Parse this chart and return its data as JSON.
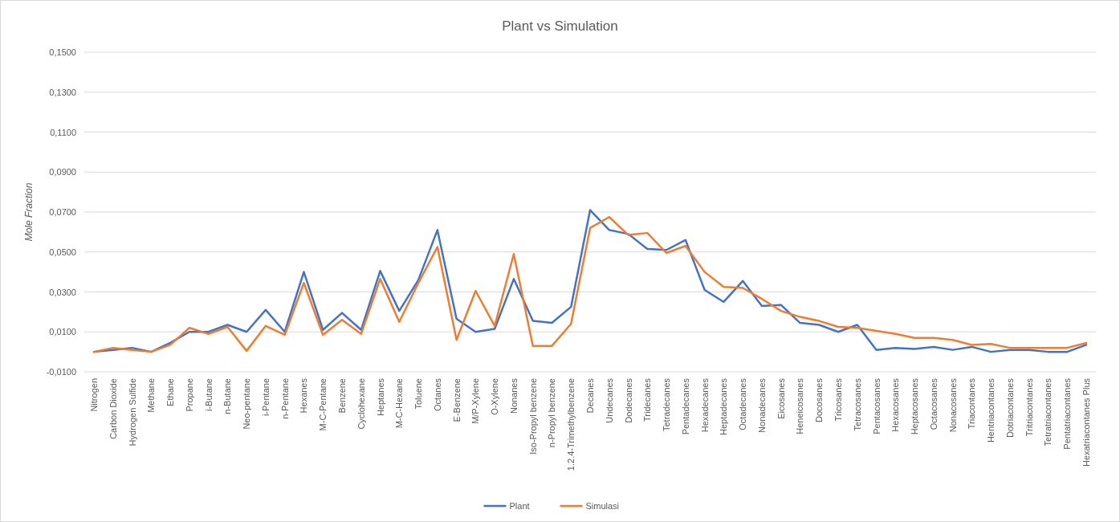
{
  "chart_data": {
    "type": "line",
    "title": "Plant vs Simulation",
    "ylabel": "Mole Fraction",
    "categories": [
      "Nitrogen",
      "Carbon Dioxide",
      "Hydrogen Sulfide",
      "Methane",
      "Ethane",
      "Propane",
      "i-Butane",
      "n-Butane",
      "Neo-pentane",
      "i-Pentane",
      "n-Pentane",
      "Hexanes",
      "M-C-Pentane",
      "Benzene",
      "Cyclohexane",
      "Heptanes",
      "M-C-Hexane",
      "Toluene",
      "Octanes",
      "E-Benzene",
      "M/P-Xylene",
      "O-Xylene",
      "Nonanes",
      "Iso-Propyl benzene",
      "n-Propyl benzene",
      "1.2.4-Trimethylbenzene",
      "Decanes",
      "Undecanes",
      "Dodecanes",
      "Tridecanes",
      "Tetradecanes",
      "Pentadecanes",
      "Hexadecanes",
      "Heptadecanes",
      "Octadecanes",
      "Nonadecanes",
      "Eicosanes",
      "Heneicosanes",
      "Docosanes",
      "Tricosanes",
      "Tetracosanes",
      "Pentacosanes",
      "Hexacosanes",
      "Heptacosanes",
      "Octacosanes",
      "Nonacosanes",
      "Triacontanes",
      "Hentriacontanes",
      "Dotriacontanes",
      "Tritriacontanes",
      "Tetratriacontanes",
      "Pentatriacontanes",
      "Hexatriacontanes Plus"
    ],
    "series": [
      {
        "name": "Plant",
        "color": "#4472c4",
        "values": [
          0.0,
          0.001,
          0.002,
          0.0,
          0.0045,
          0.01,
          0.01,
          0.0135,
          0.01,
          0.021,
          0.01,
          0.04,
          0.011,
          0.0195,
          0.011,
          0.0405,
          0.0205,
          0.036,
          0.061,
          0.0165,
          0.01,
          0.0115,
          0.0365,
          0.0155,
          0.0145,
          0.0225,
          0.071,
          0.061,
          0.059,
          0.0515,
          0.051,
          0.056,
          0.031,
          0.025,
          0.0355,
          0.023,
          0.0235,
          0.0145,
          0.0135,
          0.01,
          0.0135,
          0.001,
          0.002,
          0.0015,
          0.0025,
          0.001,
          0.0025,
          0.0,
          0.001,
          0.001,
          0.0,
          0.0,
          0.0035
        ]
      },
      {
        "name": "Simulasi",
        "color": "#ed7d31",
        "values": [
          0.0,
          0.002,
          0.001,
          0.0,
          0.0035,
          0.012,
          0.009,
          0.0125,
          0.0005,
          0.013,
          0.0085,
          0.0345,
          0.0085,
          0.016,
          0.009,
          0.0365,
          0.015,
          0.0345,
          0.0525,
          0.006,
          0.0305,
          0.013,
          0.049,
          0.003,
          0.003,
          0.014,
          0.062,
          0.0675,
          0.0585,
          0.0595,
          0.0495,
          0.053,
          0.04,
          0.0325,
          0.032,
          0.0265,
          0.0205,
          0.0175,
          0.0155,
          0.0125,
          0.012,
          0.0105,
          0.009,
          0.007,
          0.007,
          0.006,
          0.0035,
          0.004,
          0.002,
          0.002,
          0.002,
          0.002,
          0.0045
        ]
      }
    ],
    "ylim": [
      -0.01,
      0.15
    ],
    "yticks": [
      {
        "value": -0.01,
        "label": "-0,0100"
      },
      {
        "value": 0.01,
        "label": "0,0100"
      },
      {
        "value": 0.03,
        "label": "0,0300"
      },
      {
        "value": 0.05,
        "label": "0,0500"
      },
      {
        "value": 0.07,
        "label": "0,0700"
      },
      {
        "value": 0.09,
        "label": "0,0900"
      },
      {
        "value": 0.11,
        "label": "0,1100"
      },
      {
        "value": 0.13,
        "label": "0,1300"
      },
      {
        "value": 0.15,
        "label": "0,1500"
      }
    ],
    "grid": "y",
    "legend": "bottom",
    "marker": "none",
    "line_style": "solid"
  }
}
